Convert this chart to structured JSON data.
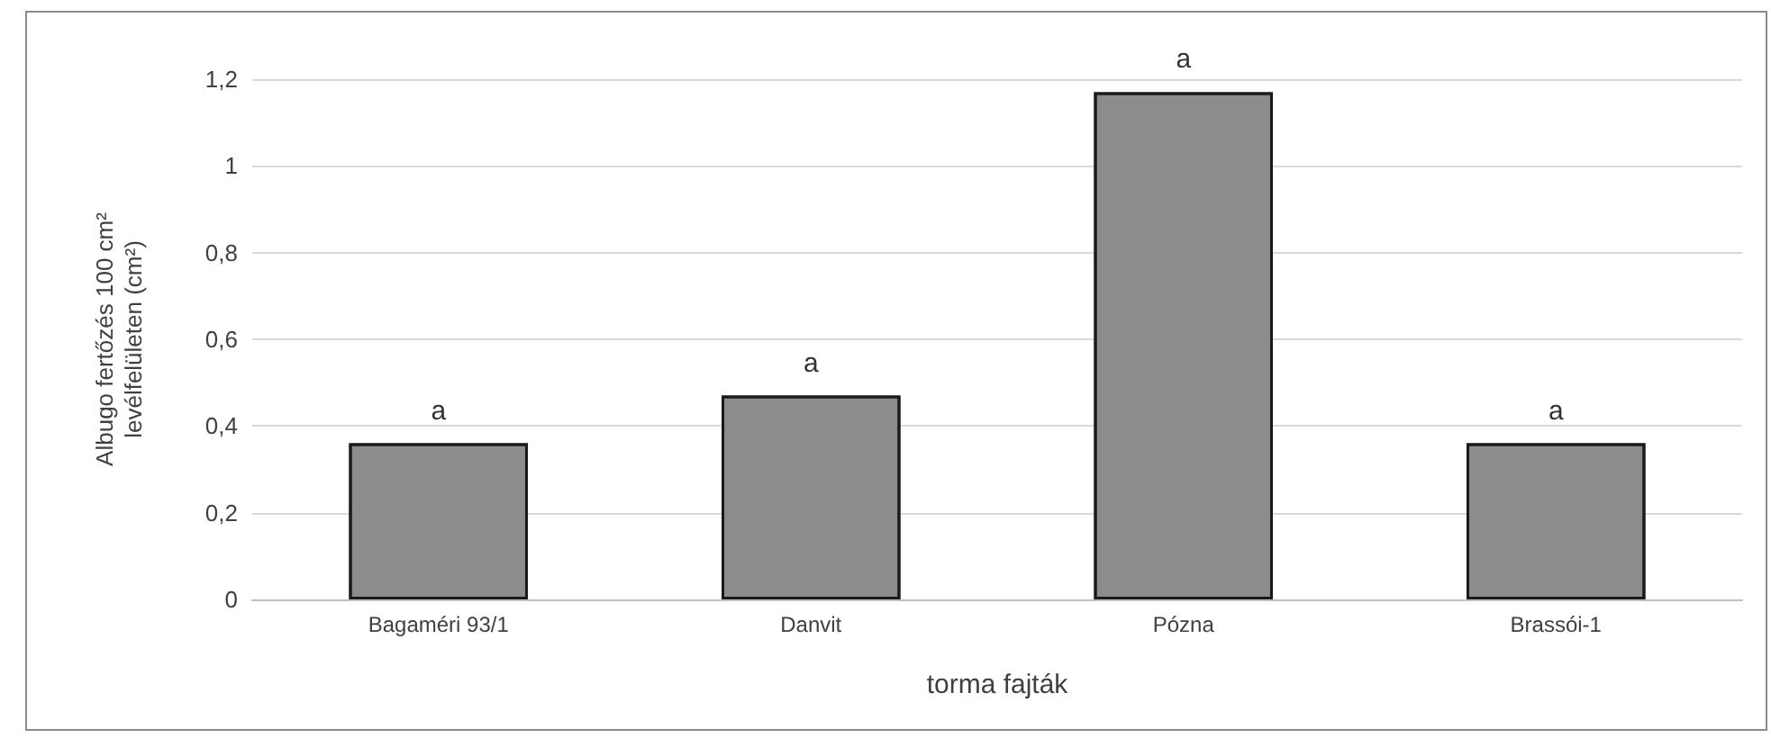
{
  "chart_data": {
    "type": "bar",
    "xlabel": "torma fajták",
    "ylabel": "Albugo fertőzés 100 cm²\nlevélfelületen (cm²)",
    "categories": [
      "Bagaméri 93/1",
      "Danvit",
      "Pózna",
      "Brassói-1"
    ],
    "values": [
      0.36,
      0.47,
      1.17,
      0.36
    ],
    "color": "#8c8c8c",
    "ylim": [
      0,
      1.2
    ],
    "yticks": [
      0,
      {
        "value": 0.2,
        "label": "0,2"
      },
      {
        "value": 0.4,
        "label": "0,4"
      },
      {
        "value": 0.6,
        "label": "0,6"
      },
      {
        "value": 0.8,
        "label": "0,8"
      },
      1,
      {
        "value": 1.2,
        "label": "1,2"
      }
    ],
    "grid": "y",
    "annotations": [
      {
        "text": "a",
        "x": "Bagaméri 93/1",
        "y": 0.36
      },
      {
        "text": "a",
        "x": "Danvit",
        "y": 0.47
      },
      {
        "text": "a",
        "x": "Pózna",
        "y": 1.17
      },
      {
        "text": "a",
        "x": "Brassói-1",
        "y": 0.36
      }
    ]
  }
}
